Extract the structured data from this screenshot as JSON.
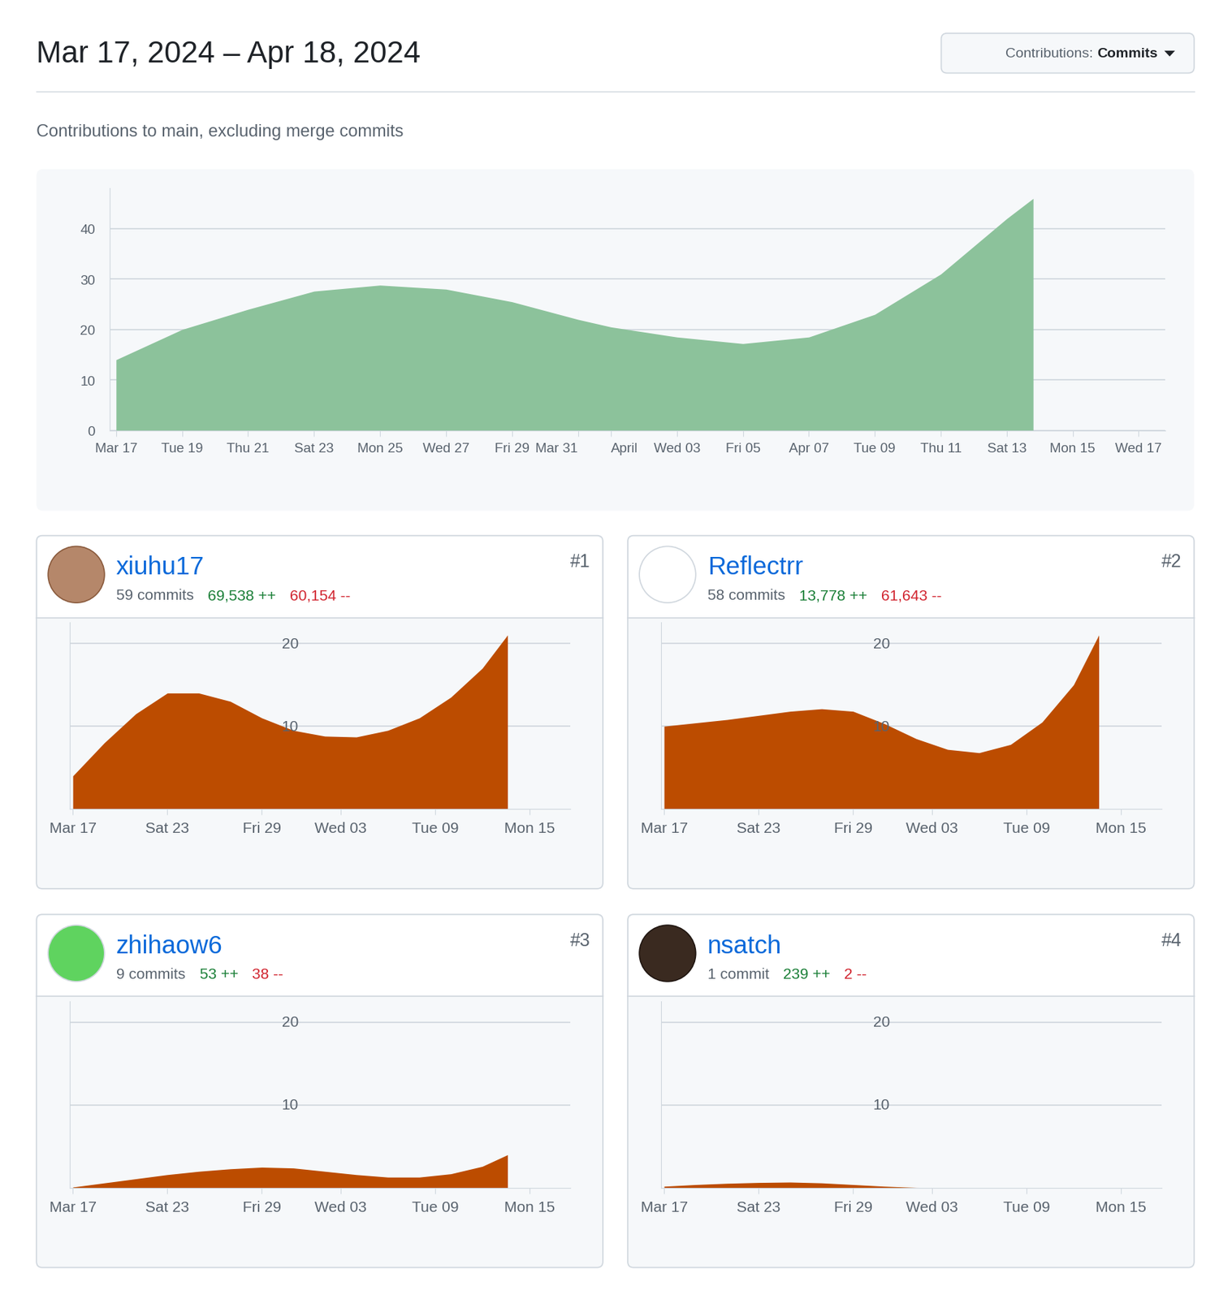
{
  "header": {
    "title": "Mar 17, 2024 – Apr 18, 2024",
    "button_label": "Contributions:",
    "button_value": "Commits",
    "subtitle": "Contributions to main, excluding merge commits"
  },
  "chart_data": [
    {
      "type": "area",
      "color": "#8cc29b",
      "x": [
        0,
        2,
        4,
        6,
        8,
        10,
        12,
        14,
        15,
        17,
        19,
        21,
        23,
        25,
        27,
        27.8
      ],
      "values": [
        14,
        20,
        24,
        27.6,
        28.8,
        28,
        25.5,
        22,
        20.5,
        18.5,
        17.2,
        18.5,
        23,
        31,
        42,
        46
      ],
      "xlim": [
        -0.2,
        31.8
      ],
      "xticks": [
        {
          "value": 0,
          "label": "Mar 17"
        },
        {
          "value": 2,
          "label": "Tue 19"
        },
        {
          "value": 4,
          "label": "Thu 21"
        },
        {
          "value": 6,
          "label": "Sat 23"
        },
        {
          "value": 8,
          "label": "Mon 25"
        },
        {
          "value": 10,
          "label": "Wed 27"
        },
        {
          "value": 12,
          "label": "Fri 29"
        },
        {
          "value": 14,
          "label": "Mar 31"
        },
        {
          "value": 15,
          "label": "April"
        },
        {
          "value": 17,
          "label": "Wed 03"
        },
        {
          "value": 19,
          "label": "Fri 05"
        },
        {
          "value": 21,
          "label": "Apr 07"
        },
        {
          "value": 23,
          "label": "Tue 09"
        },
        {
          "value": 25,
          "label": "Thu 11"
        },
        {
          "value": 27,
          "label": "Sat 13"
        },
        {
          "value": 29,
          "label": "Mon 15"
        },
        {
          "value": 31,
          "label": "Wed 17"
        }
      ],
      "ylim": [
        0,
        48
      ],
      "yticks": [
        0,
        10,
        20,
        30,
        40
      ],
      "grid": true
    },
    {
      "type": "area",
      "title": "xiuhu17",
      "subtitle": "59 commits",
      "additions": "69,538 ++",
      "deletions": "60,154 --",
      "rank": "#1",
      "color": "#bc4c00",
      "x": [
        0,
        2,
        4,
        6,
        8,
        10,
        12,
        14,
        16,
        18,
        20,
        22,
        24,
        26,
        27.6
      ],
      "values": [
        4,
        8,
        11.5,
        14,
        14,
        13,
        11,
        9.5,
        8.8,
        8.7,
        9.5,
        11,
        13.5,
        17,
        21
      ],
      "xlim": [
        -0.2,
        31.6
      ],
      "xticks": [
        {
          "value": 0,
          "label": "Mar 17"
        },
        {
          "value": 6,
          "label": "Sat 23"
        },
        {
          "value": 12,
          "label": "Fri 29"
        },
        {
          "value": 17,
          "label": "Wed 03"
        },
        {
          "value": 23,
          "label": "Tue 09"
        },
        {
          "value": 29,
          "label": "Mon 15"
        }
      ],
      "ylim": [
        0,
        22.5
      ],
      "yticks": [
        10,
        20
      ],
      "grid": true
    },
    {
      "type": "area",
      "title": "Reflectrr",
      "subtitle": "58 commits",
      "additions": "13,778 ++",
      "deletions": "61,643 --",
      "rank": "#2",
      "color": "#bc4c00",
      "x": [
        0,
        2,
        4,
        6,
        8,
        10,
        12,
        14,
        16,
        18,
        20,
        22,
        24,
        26,
        27.6
      ],
      "values": [
        10,
        10.4,
        10.8,
        11.3,
        11.8,
        12.1,
        11.8,
        10.3,
        8.5,
        7.2,
        6.8,
        7.8,
        10.5,
        15,
        21
      ],
      "xlim": [
        -0.2,
        31.6
      ],
      "xticks": [
        {
          "value": 0,
          "label": "Mar 17"
        },
        {
          "value": 6,
          "label": "Sat 23"
        },
        {
          "value": 12,
          "label": "Fri 29"
        },
        {
          "value": 17,
          "label": "Wed 03"
        },
        {
          "value": 23,
          "label": "Tue 09"
        },
        {
          "value": 29,
          "label": "Mon 15"
        }
      ],
      "ylim": [
        0,
        22.5
      ],
      "yticks": [
        10,
        20
      ],
      "grid": true
    },
    {
      "type": "area",
      "title": "zhihaow6",
      "subtitle": "9 commits",
      "additions": "53 ++",
      "deletions": "38 --",
      "rank": "#3",
      "color": "#bc4c00",
      "x": [
        0,
        2,
        4,
        6,
        8,
        10,
        12,
        14,
        16,
        18,
        20,
        22,
        24,
        26,
        27.6
      ],
      "values": [
        0.1,
        0.6,
        1.1,
        1.6,
        2.0,
        2.3,
        2.5,
        2.4,
        2.0,
        1.6,
        1.3,
        1.3,
        1.7,
        2.6,
        4.0
      ],
      "xlim": [
        -0.2,
        31.6
      ],
      "xticks": [
        {
          "value": 0,
          "label": "Mar 17"
        },
        {
          "value": 6,
          "label": "Sat 23"
        },
        {
          "value": 12,
          "label": "Fri 29"
        },
        {
          "value": 17,
          "label": "Wed 03"
        },
        {
          "value": 23,
          "label": "Tue 09"
        },
        {
          "value": 29,
          "label": "Mon 15"
        }
      ],
      "ylim": [
        0,
        22.5
      ],
      "yticks": [
        10,
        20
      ],
      "grid": true
    },
    {
      "type": "area",
      "title": "nsatch",
      "subtitle": "1 commit",
      "additions": "239 ++",
      "deletions": "2 --",
      "rank": "#4",
      "color": "#bc4c00",
      "x": [
        0,
        2,
        4,
        6,
        8,
        10,
        12,
        14,
        16,
        18,
        20,
        22,
        24,
        26,
        27.6
      ],
      "values": [
        0.2,
        0.4,
        0.55,
        0.65,
        0.7,
        0.6,
        0.4,
        0.2,
        0.05,
        0,
        0,
        0,
        0,
        0,
        0
      ],
      "xlim": [
        -0.2,
        31.6
      ],
      "xticks": [
        {
          "value": 0,
          "label": "Mar 17"
        },
        {
          "value": 6,
          "label": "Sat 23"
        },
        {
          "value": 12,
          "label": "Fri 29"
        },
        {
          "value": 17,
          "label": "Wed 03"
        },
        {
          "value": 23,
          "label": "Tue 09"
        },
        {
          "value": 29,
          "label": "Mon 15"
        }
      ],
      "ylim": [
        0,
        22.5
      ],
      "yticks": [
        10,
        20
      ],
      "grid": true
    }
  ]
}
